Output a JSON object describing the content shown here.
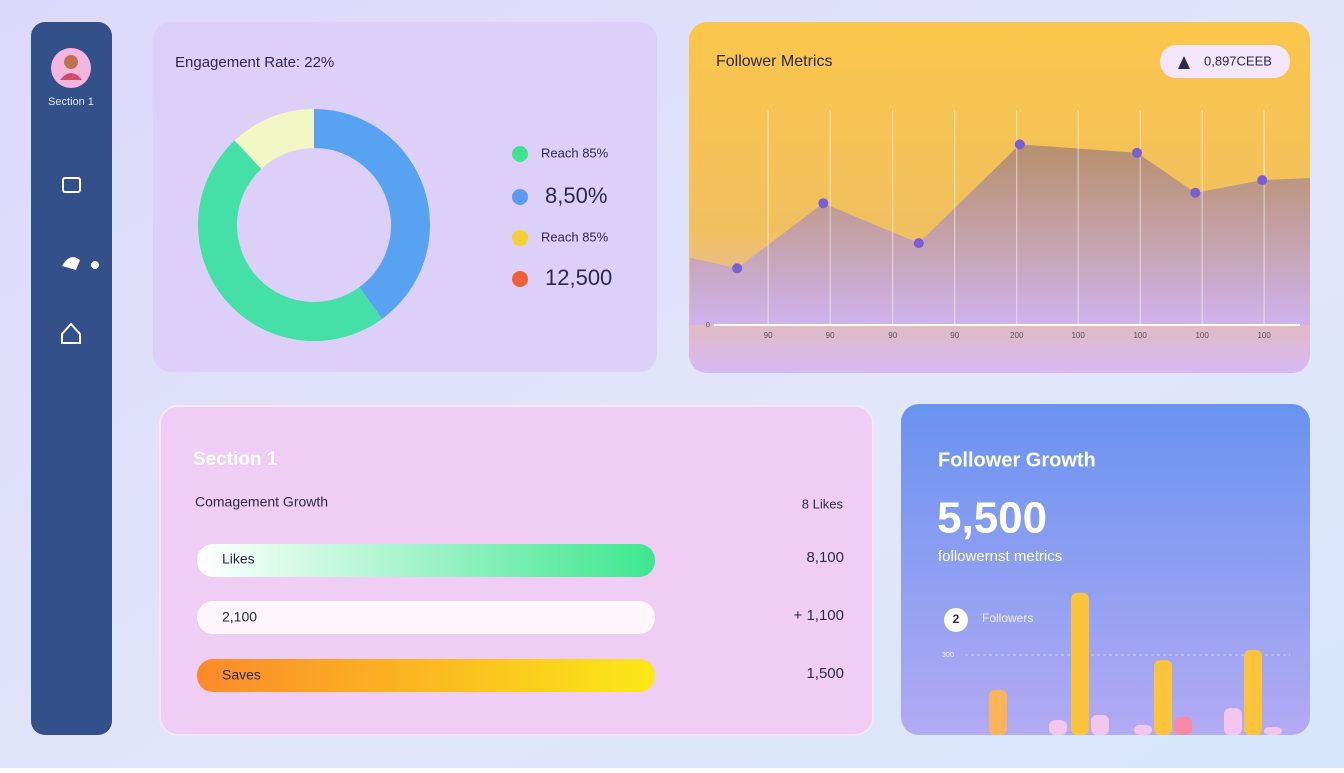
{
  "sidebar": {
    "label": "Section 1"
  },
  "engagement": {
    "title": "Engagement Rate: 22%",
    "legend": [
      {
        "label": "Reach 85%",
        "color": "#45e08f"
      },
      {
        "label": "8,50%",
        "color": "#5b9af0"
      },
      {
        "label": "Reach 85%",
        "color": "#f5d033"
      },
      {
        "label": "12,500",
        "color": "#f0603a"
      }
    ]
  },
  "metrics": {
    "title": "Follower Metrics",
    "badge": "0,897CEEB"
  },
  "growth_list": {
    "title": "Section 1",
    "subtitle": "Comagement Growth",
    "right_label": "8 Likes",
    "rows": [
      {
        "label": "Likes",
        "value": "8,100"
      },
      {
        "label": "2,100",
        "value": "+ 1,100"
      },
      {
        "label": "Saves",
        "value": "1,500"
      }
    ]
  },
  "follower_growth": {
    "title": "Follower Growth",
    "value": "5,500",
    "subtitle": "followernst metrics",
    "badge": "2",
    "legend": "Followers"
  },
  "chart_data": [
    {
      "type": "pie",
      "values": [
        40,
        48,
        12
      ],
      "colors": [
        "#58a2f2",
        "#45e0a8",
        "#f2f8c4"
      ]
    },
    {
      "type": "area",
      "x": [
        0,
        7.6,
        21.5,
        36.9,
        53.2,
        72.1,
        81.5,
        92.3,
        100
      ],
      "values": [
        32,
        27,
        58,
        39,
        86,
        82,
        63,
        69,
        70
      ],
      "color": "#7b5ed6",
      "xlim": [
        0,
        100
      ],
      "ylim": [
        0,
        100
      ],
      "xticks": [
        {
          "value": 12.6,
          "label": "90"
        },
        {
          "value": 22.6,
          "label": "90"
        },
        {
          "value": 32.7,
          "label": "90"
        },
        {
          "value": 42.7,
          "label": "90"
        },
        {
          "value": 52.7,
          "label": "200"
        },
        {
          "value": 62.6,
          "label": "100"
        },
        {
          "value": 72.6,
          "label": "100"
        },
        {
          "value": 82.6,
          "label": "100"
        },
        {
          "value": 92.6,
          "label": "100"
        }
      ],
      "yticks": [
        0
      ],
      "grid": true
    },
    {
      "type": "bar",
      "categories": [
        null,
        null,
        null,
        null,
        null,
        null,
        null,
        null,
        null,
        null
      ],
      "values": [
        169,
        56,
        533,
        75,
        38,
        281,
        68,
        101,
        319,
        30
      ],
      "colors": [
        "#fbb45a",
        "#f3c6ee",
        "#fcc43c",
        "#f3c6ee",
        "#f3c6ee",
        "#fcc43c",
        "#f58aa6",
        "#f3c6ee",
        "#fcc43c",
        "#f3c6ee"
      ],
      "ylim": [
        0,
        600
      ],
      "yticks": [
        300
      ],
      "grid": true
    }
  ]
}
